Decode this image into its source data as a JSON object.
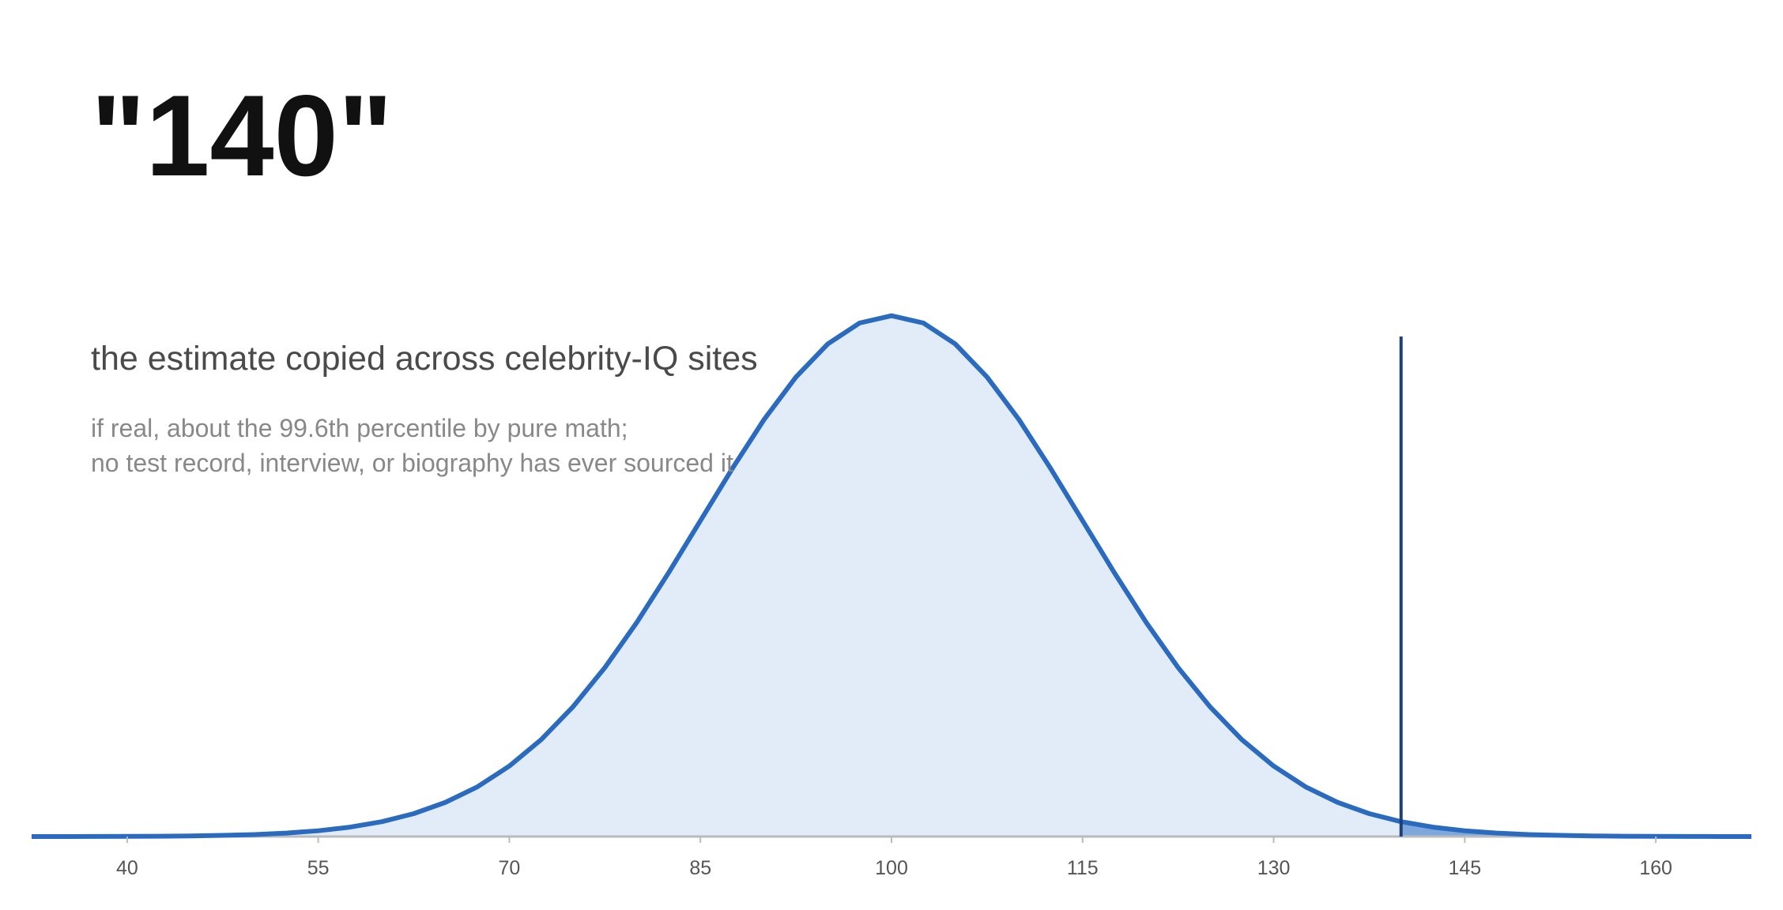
{
  "chart_data": {
    "type": "area",
    "title": "\"140\"",
    "subtitle": "the estimate copied across celebrity-IQ sites",
    "notes": [
      "if real, about the 99.6th percentile by pure math;",
      "no test record, interview, or biography has ever sourced it"
    ],
    "x": [
      32.5,
      35,
      37.5,
      40,
      42.5,
      45,
      47.5,
      50,
      52.5,
      55,
      57.5,
      60,
      62.5,
      65,
      67.5,
      70,
      72.5,
      75,
      77.5,
      80,
      82.5,
      85,
      87.5,
      90,
      92.5,
      95,
      97.5,
      100,
      102.5,
      105,
      107.5,
      110,
      112.5,
      115,
      117.5,
      120,
      122.5,
      125,
      127.5,
      130,
      132.5,
      135,
      137.5,
      140,
      142.5,
      145,
      147.5,
      150,
      152.5,
      155,
      157.5,
      160,
      162.5,
      165,
      167.5
    ],
    "values": [
      1e-06,
      2.2e-06,
      4.5e-06,
      8.9e-06,
      1.72e-05,
      3.2e-05,
      5.82e-05,
      0.000103,
      0.000177,
      0.000295,
      0.00048,
      0.00076,
      0.00117,
      0.00175,
      0.00254,
      0.0036,
      0.00495,
      0.00663,
      0.00863,
      0.01093,
      0.01347,
      0.01613,
      0.01879,
      0.0213,
      0.02347,
      0.02516,
      0.02623,
      0.0266,
      0.02623,
      0.02516,
      0.02347,
      0.0213,
      0.01879,
      0.01613,
      0.01347,
      0.01093,
      0.00863,
      0.00663,
      0.00495,
      0.0036,
      0.00254,
      0.00175,
      0.00117,
      0.00076,
      0.00048,
      0.000295,
      0.000177,
      0.000103,
      5.82e-05,
      3.2e-05,
      1.72e-05,
      8.9e-06,
      4.5e-06,
      2.2e-06,
      1e-06
    ],
    "color": "#2a6bbf",
    "fill": "#e2ecf8",
    "tail_color": "#7ea8dc",
    "marker_x": 140,
    "marker_color": "#1d3f7a",
    "xlim": [
      32.5,
      167.5
    ],
    "xticks": [
      40,
      55,
      70,
      85,
      100,
      115,
      130,
      145,
      160
    ],
    "ylim": [
      0,
      0.028
    ]
  }
}
